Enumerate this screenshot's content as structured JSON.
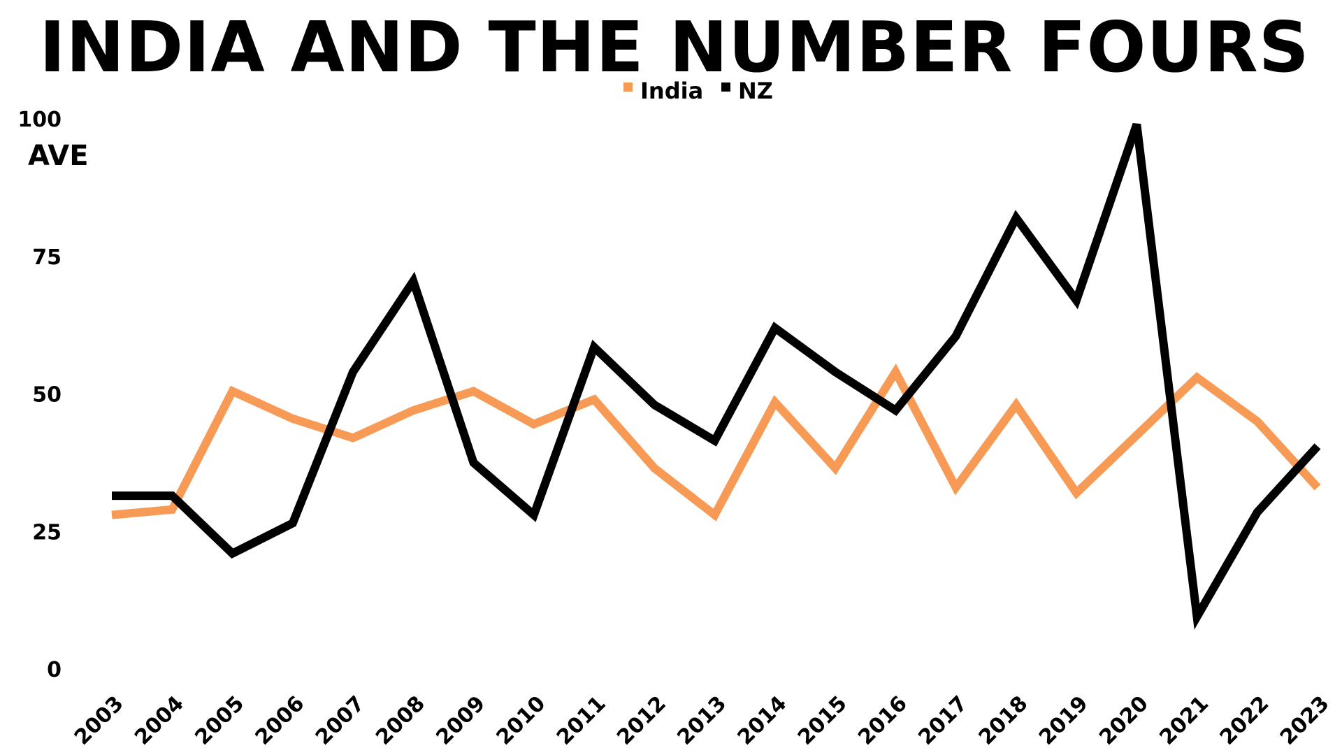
{
  "chart_data": {
    "type": "line",
    "title": "INDIA AND THE NUMBER FOURS",
    "xlabel": "",
    "ylabel": "AVE",
    "ylim": [
      0,
      100
    ],
    "yticks": [
      0,
      25,
      50,
      75,
      100
    ],
    "grid": false,
    "legend_position": "top-center",
    "categories": [
      "2003",
      "2004",
      "2005",
      "2006",
      "2007",
      "2008",
      "2009",
      "2010",
      "2011",
      "2012",
      "2013",
      "2014",
      "2015",
      "2016",
      "2017",
      "2018",
      "2019",
      "2020",
      "2021",
      "2022",
      "2023"
    ],
    "series": [
      {
        "name": "India",
        "color": "#F79A55",
        "values": [
          28,
          29,
          50.5,
          45.5,
          42,
          47,
          50.5,
          44.5,
          49,
          36.5,
          28,
          48.5,
          36.5,
          54,
          33,
          48,
          32,
          42.5,
          53,
          45,
          33
        ]
      },
      {
        "name": "NZ",
        "color": "#000000",
        "values": [
          31.5,
          31.5,
          21,
          26.5,
          54,
          70.5,
          37.5,
          28,
          58.5,
          48,
          41.5,
          62,
          54,
          47,
          60.5,
          82,
          67,
          99,
          9.5,
          28.5,
          40.5
        ]
      }
    ]
  }
}
